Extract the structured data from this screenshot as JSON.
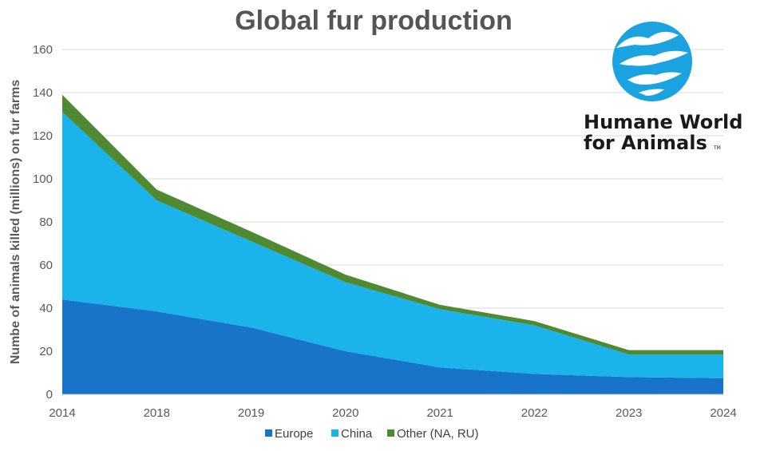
{
  "chart_data": {
    "type": "area",
    "stacked": true,
    "title": "Global fur production",
    "xlabel": "",
    "ylabel": "Numbe of animals killed (millions) on fur farms",
    "categories": [
      "2014",
      "2018",
      "2019",
      "2020",
      "2021",
      "2022",
      "2023",
      "2024"
    ],
    "series": [
      {
        "name": "Europe",
        "color": "#1874C8",
        "values": [
          44,
          38.5,
          31,
          20,
          12.5,
          9.5,
          8,
          7.5
        ]
      },
      {
        "name": "China",
        "color": "#1AB3EC",
        "values": [
          87,
          51.5,
          40,
          32,
          27,
          22.5,
          10.5,
          11
        ]
      },
      {
        "name": "Other (NA, RU)",
        "color": "#4F8A33",
        "values": [
          8,
          5,
          4.5,
          3.5,
          2,
          2,
          2,
          2
        ]
      }
    ],
    "ylim": [
      0,
      160
    ],
    "yticks": [
      0,
      20,
      40,
      60,
      80,
      100,
      120,
      140,
      160
    ],
    "grid": true,
    "legend": "bottom"
  },
  "logo": {
    "line1": "Humane World",
    "line2": "for Animals",
    "trademark": "TM",
    "color": "#1AA3E0"
  }
}
